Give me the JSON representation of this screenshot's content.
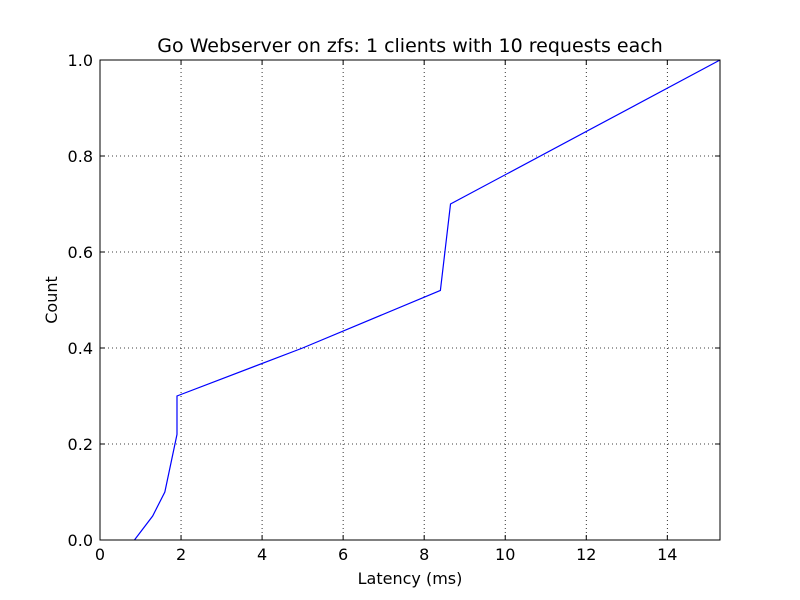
{
  "chart_data": {
    "type": "line",
    "title": "Go Webserver on zfs: 1 clients with 10 requests each",
    "xlabel": "Latency (ms)",
    "ylabel": "Count",
    "xlim": [
      0,
      15.3
    ],
    "ylim": [
      0,
      1.0
    ],
    "xticks": [
      0,
      2,
      4,
      6,
      8,
      10,
      12,
      14
    ],
    "yticks": [
      0.0,
      0.2,
      0.4,
      0.6,
      0.8,
      1.0
    ],
    "xtick_labels": [
      "0",
      "2",
      "4",
      "6",
      "8",
      "10",
      "12",
      "14"
    ],
    "ytick_labels": [
      "0.0",
      "0.2",
      "0.4",
      "0.6",
      "0.8",
      "1.0"
    ],
    "grid": true,
    "series": [
      {
        "color": "#0000ff",
        "x": [
          0.85,
          1.3,
          1.6,
          1.9,
          1.9,
          5.0,
          8.4,
          8.65,
          15.3
        ],
        "y": [
          0.0,
          0.05,
          0.1,
          0.22,
          0.3,
          0.4,
          0.52,
          0.7,
          1.0
        ]
      }
    ]
  }
}
